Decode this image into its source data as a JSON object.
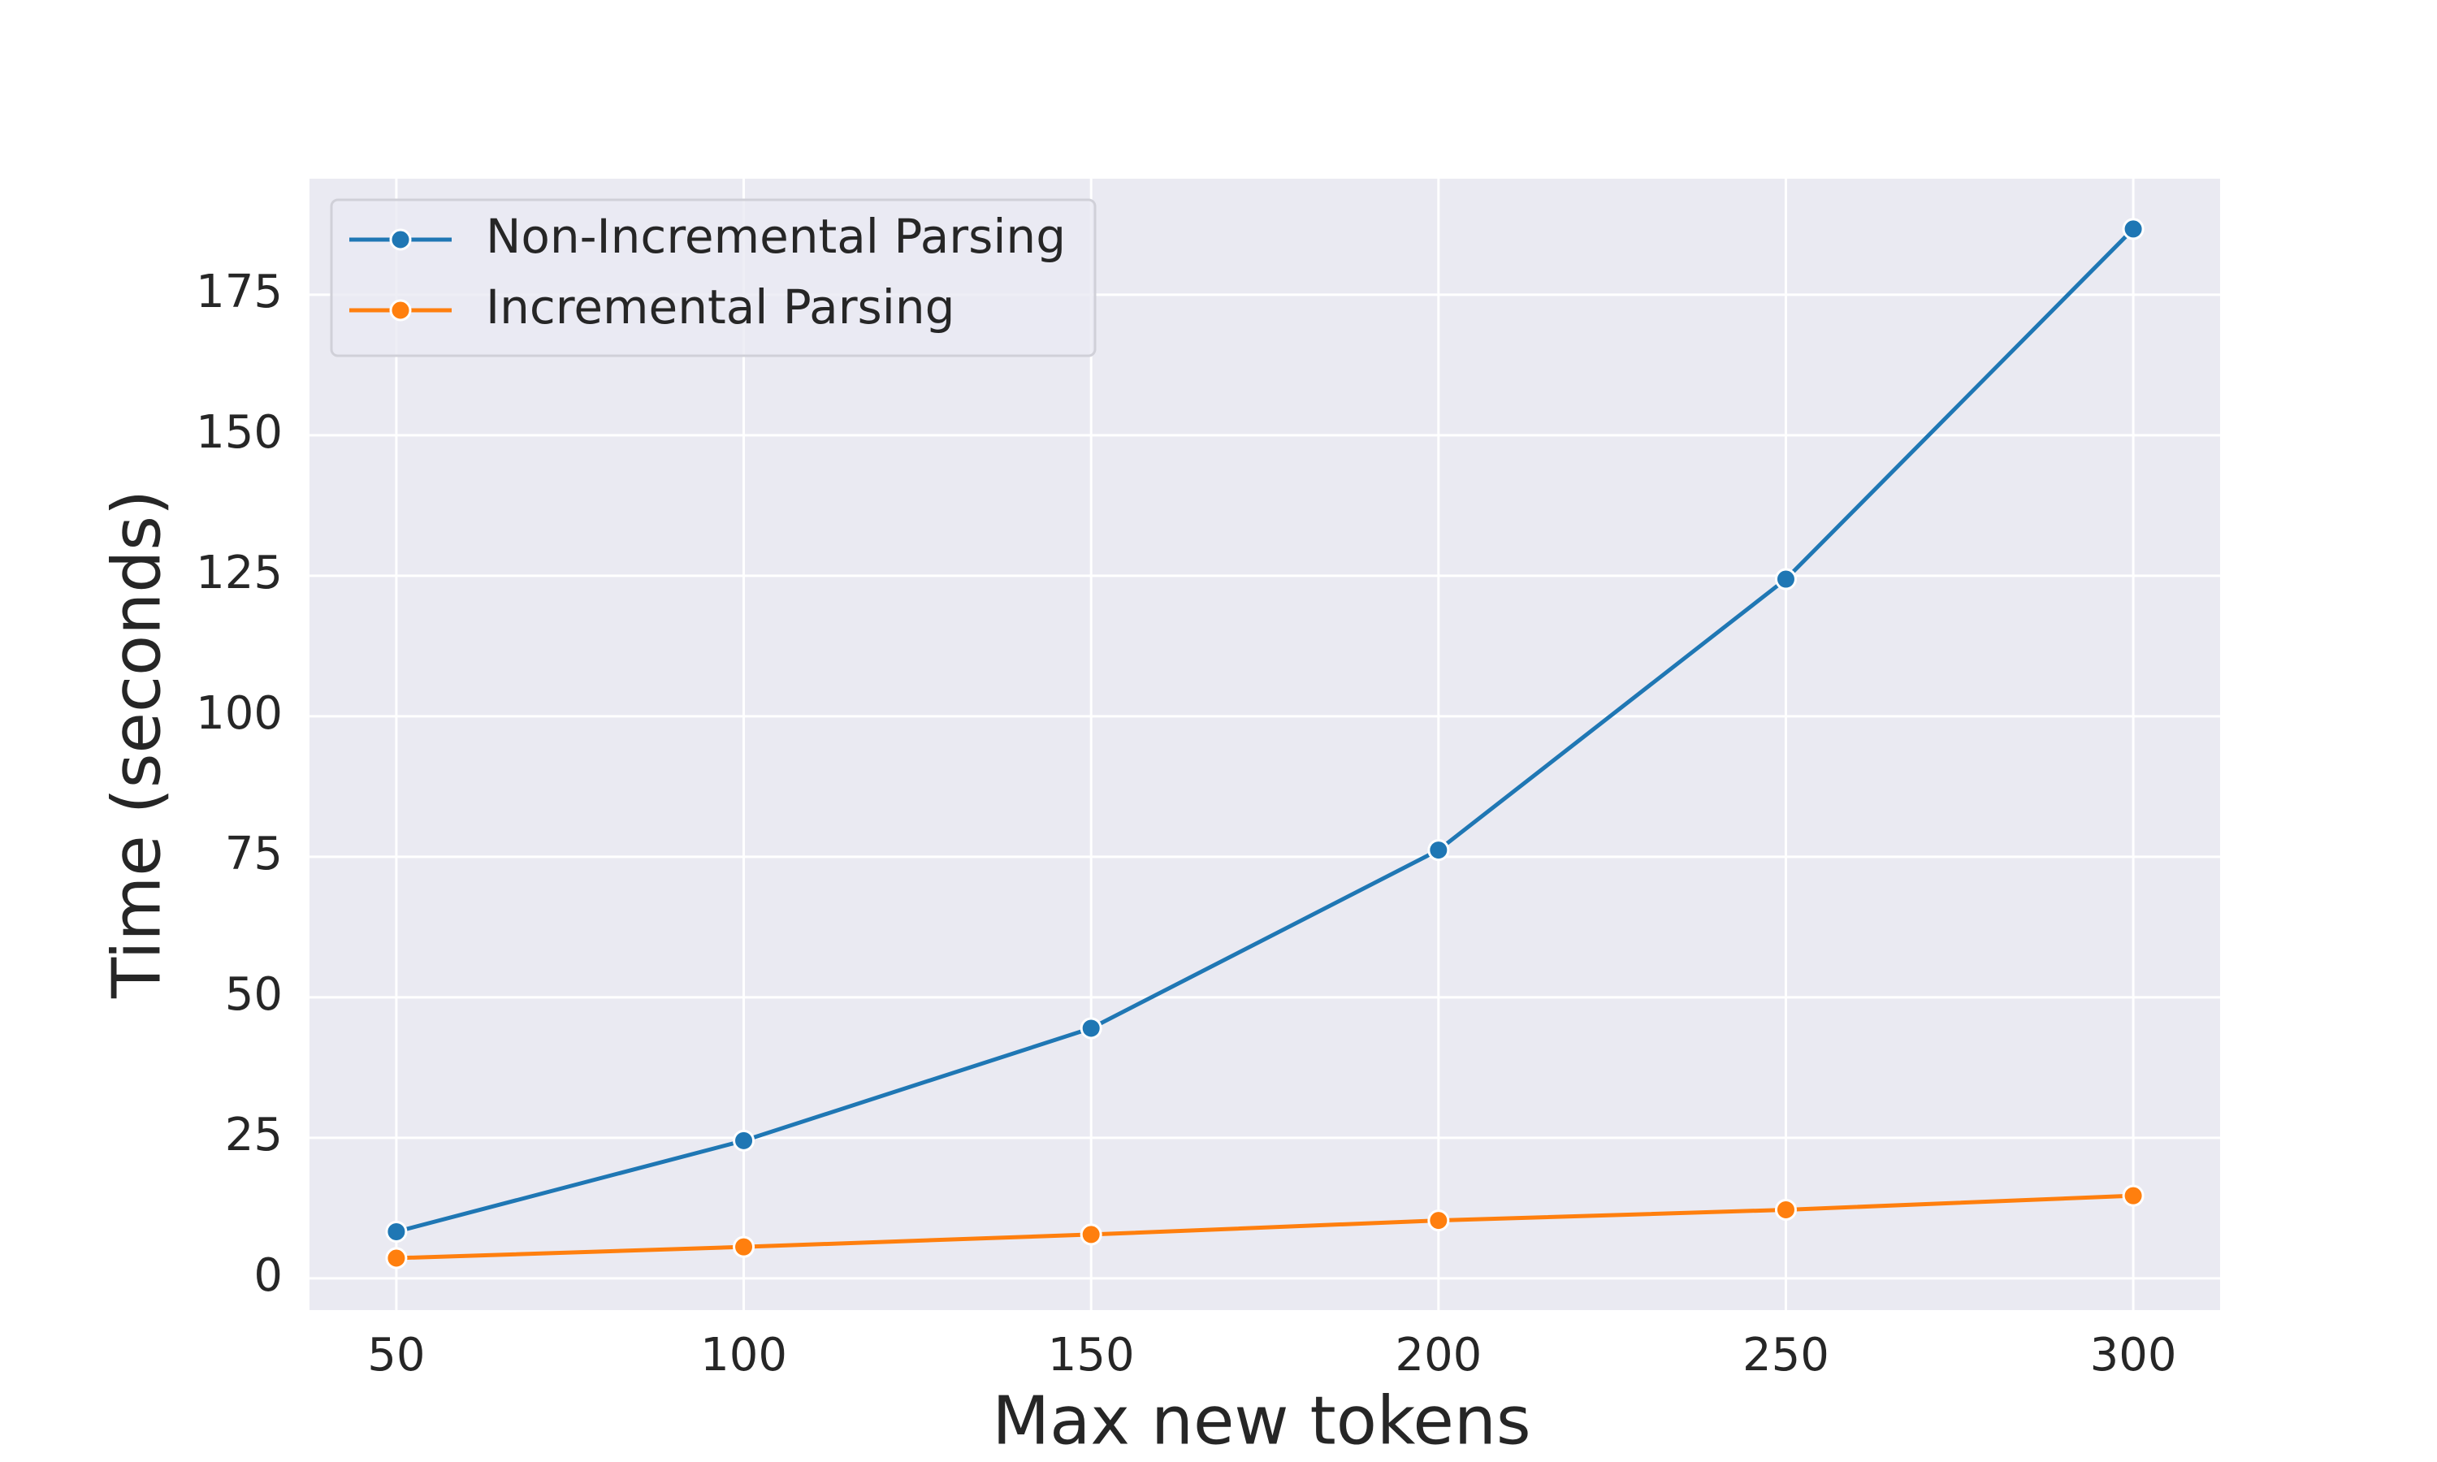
{
  "chart_data": {
    "type": "line",
    "x_label": "Max new tokens",
    "y_label": "Time (seconds)",
    "x": [
      50,
      100,
      150,
      200,
      250,
      300
    ],
    "series": [
      {
        "name": "Non-Incremental Parsing",
        "color": "#1f77b4",
        "values": [
          8.3,
          24.5,
          44.5,
          76.2,
          124.4,
          186.7
        ]
      },
      {
        "name": "Incremental Parsing",
        "color": "#ff7f0e",
        "values": [
          3.6,
          5.6,
          7.8,
          10.3,
          12.2,
          14.7
        ]
      }
    ],
    "xlim": [
      37.5,
      312.5
    ],
    "xticks": [
      50,
      100,
      150,
      200,
      250,
      300
    ],
    "ylim": [
      -5.65,
      195.65
    ],
    "yticks": [
      0,
      25,
      50,
      75,
      100,
      125,
      150,
      175
    ],
    "grid": true,
    "legend": "upper left",
    "background": "#eaeaf2"
  }
}
